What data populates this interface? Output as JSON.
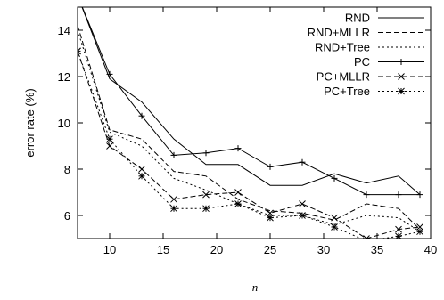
{
  "chart_data": {
    "type": "line",
    "title": "",
    "xlabel": "n",
    "ylabel": "error rate (%)",
    "xlim": [
      7,
      40
    ],
    "ylim": [
      5,
      15
    ],
    "xticks": [
      10,
      15,
      20,
      25,
      30,
      35,
      40
    ],
    "yticks": [
      6,
      8,
      10,
      12,
      14
    ],
    "grid": false,
    "legend_position": "top-right",
    "x": [
      7,
      10,
      13,
      16,
      19,
      22,
      25,
      28,
      31,
      34,
      37,
      39
    ],
    "series": [
      {
        "name": "RND",
        "style": "solid",
        "marker": "none",
        "values": [
          15.5,
          11.9,
          10.9,
          9.3,
          8.2,
          8.2,
          7.3,
          7.3,
          7.8,
          7.4,
          7.7,
          6.9
        ]
      },
      {
        "name": "RND+MLLR",
        "style": "dashed",
        "marker": "none",
        "values": [
          14.2,
          9.7,
          9.3,
          7.9,
          7.7,
          6.7,
          6.2,
          6.1,
          5.8,
          6.5,
          6.3,
          5.4
        ]
      },
      {
        "name": "RND+Tree",
        "style": "dotted",
        "marker": "none",
        "values": [
          14.0,
          9.6,
          9.0,
          7.6,
          7.1,
          6.5,
          6.0,
          6.0,
          5.6,
          6.0,
          5.9,
          5.3
        ]
      },
      {
        "name": "PC",
        "style": "solid",
        "marker": "plus",
        "values": [
          15.5,
          12.1,
          10.3,
          8.6,
          8.7,
          8.9,
          8.1,
          8.3,
          7.6,
          6.9,
          6.9,
          6.9
        ]
      },
      {
        "name": "PC+MLLR",
        "style": "dashed",
        "marker": "x",
        "values": [
          13.1,
          9.0,
          8.0,
          6.7,
          6.9,
          7.0,
          6.1,
          6.5,
          5.9,
          5.0,
          5.4,
          5.5
        ]
      },
      {
        "name": "PC+Tree",
        "style": "dotted",
        "marker": "asterisk",
        "values": [
          13.1,
          9.3,
          7.7,
          6.3,
          6.3,
          6.5,
          5.9,
          6.0,
          5.5,
          4.9,
          5.1,
          5.3
        ]
      }
    ]
  }
}
